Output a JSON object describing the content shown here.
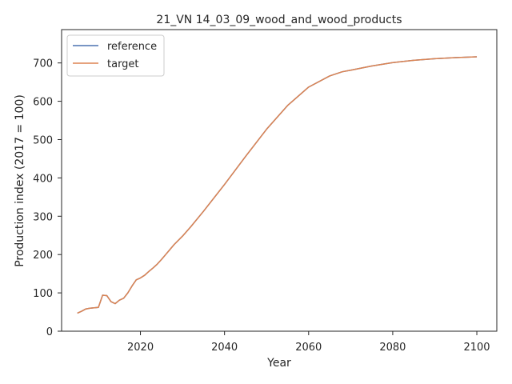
{
  "chart_data": {
    "type": "line",
    "title": "21_VN 14_03_09_wood_and_wood_products",
    "xlabel": "Year",
    "ylabel": "Production index (2017 = 100)",
    "xlim": [
      2001.25,
      2104.75
    ],
    "ylim": [
      0,
      787
    ],
    "xticks": [
      2020,
      2040,
      2060,
      2080,
      2100
    ],
    "yticks": [
      0,
      100,
      200,
      300,
      400,
      500,
      600,
      700
    ],
    "grid": false,
    "legend_position": "upper left",
    "series": [
      {
        "name": "reference",
        "color": "#4c72b0",
        "x": [
          2005,
          2006,
          2007,
          2008,
          2009,
          2010,
          2011,
          2012,
          2013,
          2014,
          2015,
          2016,
          2017,
          2018,
          2019,
          2020,
          2021,
          2022,
          2023,
          2024,
          2025,
          2026,
          2027,
          2028,
          2030,
          2032,
          2035,
          2040,
          2045,
          2050,
          2055,
          2060,
          2065,
          2068,
          2070,
          2075,
          2080,
          2085,
          2090,
          2095,
          2100
        ],
        "values": [
          47,
          52,
          58,
          60,
          61,
          62,
          94,
          93,
          77,
          72,
          81,
          86,
          100,
          118,
          134,
          139,
          146,
          156,
          165,
          175,
          187,
          200,
          213,
          226,
          248,
          273,
          313,
          383,
          456,
          527,
          589,
          637,
          666,
          677,
          681,
          692,
          701,
          707,
          711,
          714,
          716
        ]
      },
      {
        "name": "target",
        "color": "#dd8452",
        "x": [
          2005,
          2006,
          2007,
          2008,
          2009,
          2010,
          2011,
          2012,
          2013,
          2014,
          2015,
          2016,
          2017,
          2018,
          2019,
          2020,
          2021,
          2022,
          2023,
          2024,
          2025,
          2026,
          2027,
          2028,
          2030,
          2032,
          2035,
          2040,
          2045,
          2050,
          2055,
          2060,
          2065,
          2068,
          2070,
          2075,
          2080,
          2085,
          2090,
          2095,
          2100
        ],
        "values": [
          47,
          52,
          58,
          60,
          61,
          62,
          94,
          93,
          77,
          72,
          81,
          86,
          100,
          118,
          134,
          139,
          146,
          156,
          165,
          175,
          187,
          200,
          213,
          226,
          248,
          273,
          313,
          383,
          456,
          527,
          589,
          637,
          666,
          677,
          681,
          692,
          701,
          707,
          711,
          714,
          716
        ]
      }
    ]
  }
}
